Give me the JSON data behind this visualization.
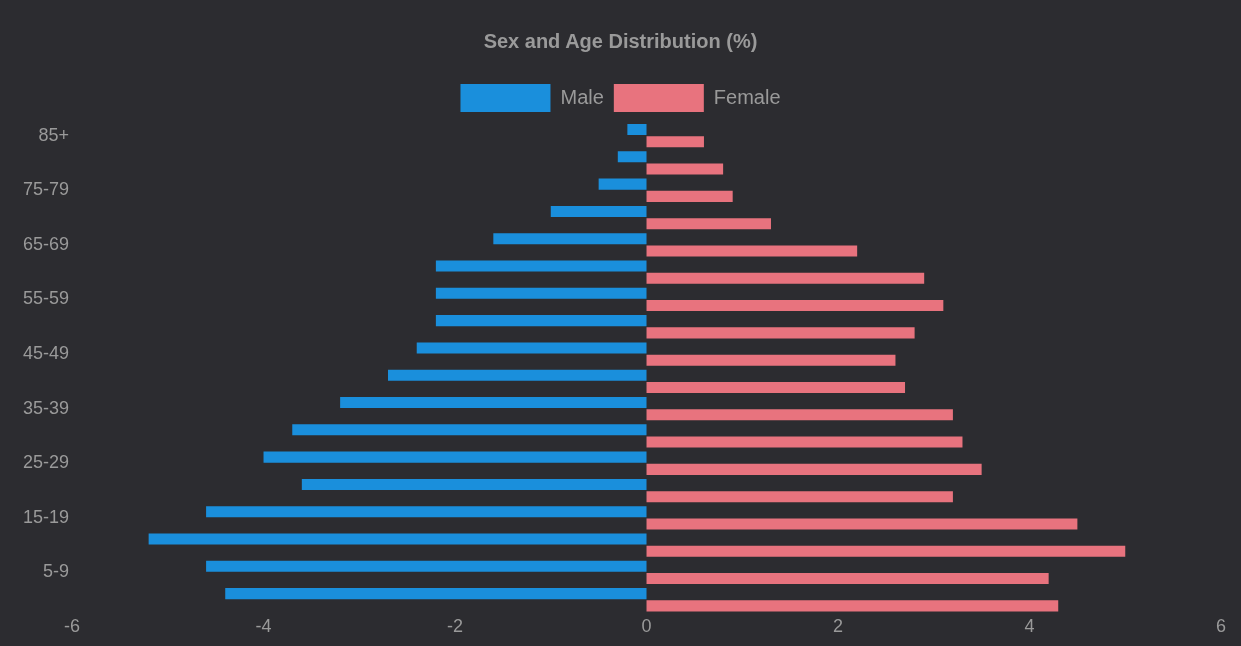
{
  "chart_data": {
    "type": "bar",
    "orientation": "horizontal",
    "title": "Sex and Age Distribution (%)",
    "categories": [
      "85+",
      null,
      "75-79",
      null,
      "65-69",
      null,
      "55-59",
      null,
      "45-49",
      null,
      "35-39",
      null,
      "25-29",
      null,
      "15-19",
      null,
      "5-9",
      null
    ],
    "series": [
      {
        "name": "Male",
        "color": "#1a8fdc",
        "values": [
          -0.2,
          -0.3,
          -0.5,
          -1.0,
          -1.6,
          -2.2,
          -2.2,
          -2.2,
          -2.4,
          -2.7,
          -3.2,
          -3.7,
          -4.0,
          -3.6,
          -4.6,
          -5.2,
          -4.6,
          -4.4
        ]
      },
      {
        "name": "Female",
        "color": "#e8737e",
        "values": [
          0.6,
          0.8,
          0.9,
          1.3,
          2.2,
          2.9,
          3.1,
          2.8,
          2.6,
          2.7,
          3.2,
          3.3,
          3.5,
          3.2,
          4.5,
          5.0,
          4.2,
          4.3
        ]
      }
    ],
    "xlim": [
      -6,
      6
    ],
    "xticks": [
      -6,
      -4,
      -2,
      0,
      2,
      4,
      6
    ],
    "grid": false,
    "legend": "top"
  }
}
